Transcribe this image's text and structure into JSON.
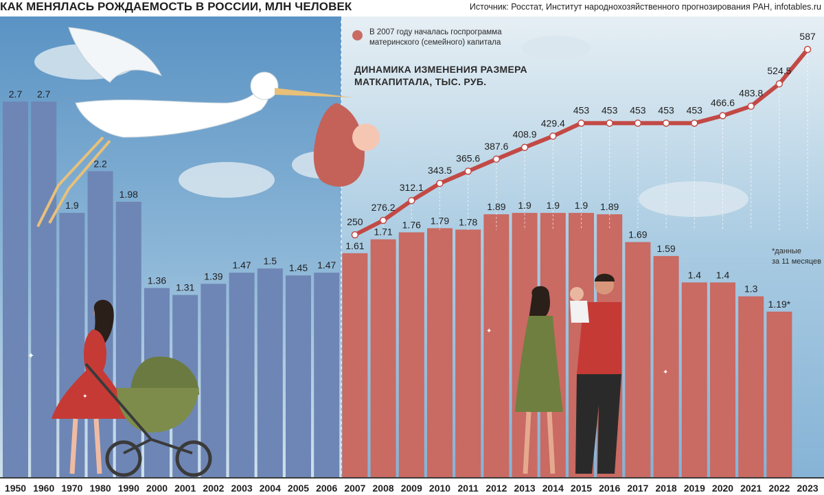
{
  "header": {
    "title": "КАК МЕНЯЛАСЬ РОЖДАЕМОСТЬ В РОССИИ, МЛН ЧЕЛОВЕК",
    "source": "Источник: Росстат, Институт народнохозяйственного прогнозирования РАН, infotables.ru"
  },
  "legend": {
    "note_line1": "В 2007 году началась госпрограмма",
    "note_line2": "материнского (семейного) капитала"
  },
  "line_title": {
    "line1": "ДИНАМИКА ИЗМЕНЕНИЯ РАЗМЕРА",
    "line2": "МАТКАПИТАЛА, ТЫС. РУБ."
  },
  "footnote": {
    "line1": "*данные",
    "line2": "за 11 месяцев"
  },
  "colors": {
    "bar_before": "#6e86b5",
    "bar_after": "#c96a63",
    "line": "#c24945",
    "sky_top": "#5b97c7",
    "sky_bottom": "#e3eef4"
  },
  "chart_data": [
    {
      "type": "bar",
      "title": "КАК МЕНЯЛАСЬ РОЖДАЕМОСТЬ В РОССИИ, МЛН ЧЕЛОВЕК",
      "xlabel": "",
      "ylabel": "",
      "ylim": [
        0,
        3.0
      ],
      "grid": false,
      "categories": [
        "1950",
        "1960",
        "1970",
        "1980",
        "1990",
        "2000",
        "2001",
        "2002",
        "2003",
        "2004",
        "2005",
        "2006",
        "2007",
        "2008",
        "2009",
        "2010",
        "2011",
        "2012",
        "2013",
        "2014",
        "2015",
        "2016",
        "2017",
        "2018",
        "2019",
        "2020",
        "2021",
        "2022",
        "2023"
      ],
      "values": [
        2.7,
        2.7,
        1.9,
        2.2,
        1.98,
        1.36,
        1.31,
        1.39,
        1.47,
        1.5,
        1.45,
        1.47,
        1.61,
        1.71,
        1.76,
        1.79,
        1.78,
        1.89,
        1.9,
        1.9,
        1.9,
        1.89,
        1.69,
        1.59,
        1.4,
        1.4,
        1.3,
        1.19,
        null
      ],
      "value_labels": [
        "2.7",
        "2.7",
        "1.9",
        "2.2",
        "1.98",
        "1.36",
        "1.31",
        "1.39",
        "1.47",
        "1.5",
        "1.45",
        "1.47",
        "1.61",
        "1.71",
        "1.76",
        "1.79",
        "1.78",
        "1.89",
        "1.9",
        "1.9",
        "1.9",
        "1.89",
        "1.69",
        "1.59",
        "1.4",
        "1.4",
        "1.3",
        "1.19*",
        ""
      ]
    },
    {
      "type": "line",
      "title": "ДИНАМИКА ИЗМЕНЕНИЯ РАЗМЕРА МАТКАПИТАЛА, ТЫС. РУБ.",
      "x": [
        "2007",
        "2008",
        "2009",
        "2010",
        "2011",
        "2012",
        "2013",
        "2014",
        "2015",
        "2016",
        "2017",
        "2018",
        "2019",
        "2020",
        "2021",
        "2022",
        "2023"
      ],
      "values": [
        250,
        276.2,
        312.1,
        343.5,
        365.6,
        387.6,
        408.9,
        429.4,
        453,
        453,
        453,
        453,
        453,
        466.6,
        483.8,
        524.5,
        587
      ],
      "value_labels": [
        "250",
        "276.2",
        "312.1",
        "343.5",
        "365.6",
        "387.6",
        "408.9",
        "429.4",
        "453",
        "453",
        "453",
        "453",
        "453",
        "466.6",
        "483.8",
        "524.5",
        "587"
      ],
      "ylim": [
        230,
        600
      ]
    }
  ]
}
